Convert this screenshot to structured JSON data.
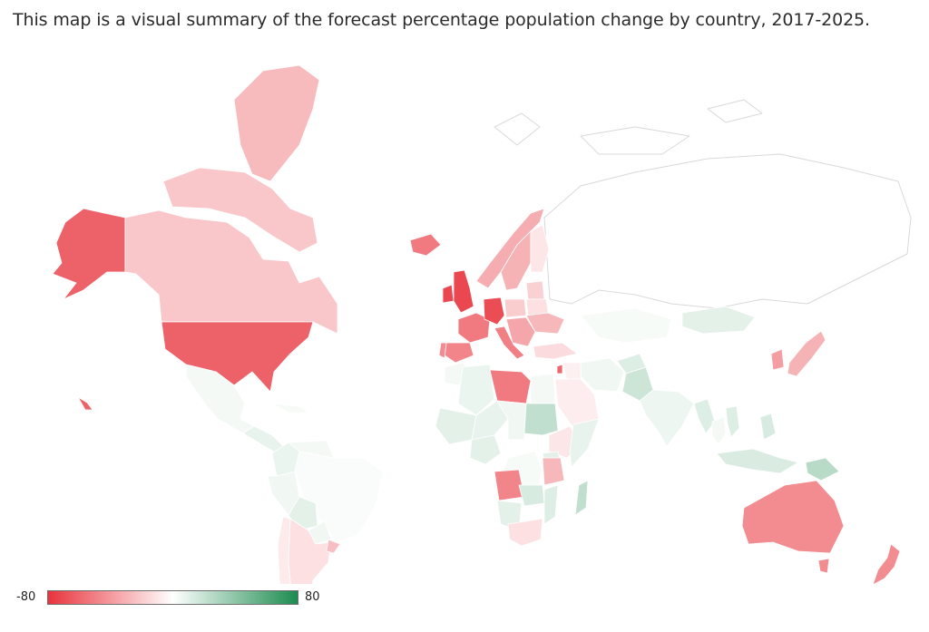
{
  "title": "This map is a visual summary of the forecast percentage population change by country, 2017-2025.",
  "legend": {
    "min_label": "-80",
    "max_label": "80",
    "min": -80,
    "max": 80,
    "color_low": "#e8333c",
    "color_mid": "#ffffff",
    "color_high": "#1c8b4f"
  },
  "colors": {
    "land_empty": "#ffffff",
    "border": "#d9d9d9"
  },
  "regions": [
    {
      "name": "Alaska (USA)",
      "value": -62
    },
    {
      "name": "Canada",
      "value": -22
    },
    {
      "name": "Greenland",
      "value": -27
    },
    {
      "name": "Canadian Arctic Islands",
      "value": -22
    },
    {
      "name": "United States",
      "value": -62
    },
    {
      "name": "Hawaii (USA)",
      "value": -62
    },
    {
      "name": "Mexico",
      "value": 4
    },
    {
      "name": "Central America",
      "value": 8
    },
    {
      "name": "Cuba",
      "value": 3
    },
    {
      "name": "Colombia",
      "value": 7
    },
    {
      "name": "Venezuela",
      "value": 4
    },
    {
      "name": "Brazil",
      "value": 2
    },
    {
      "name": "Peru",
      "value": 5
    },
    {
      "name": "Bolivia",
      "value": 10
    },
    {
      "name": "Paraguay",
      "value": 5
    },
    {
      "name": "Chile",
      "value": -8
    },
    {
      "name": "Argentina",
      "value": -12
    },
    {
      "name": "Uruguay",
      "value": -25
    },
    {
      "name": "Iceland",
      "value": -52
    },
    {
      "name": "United Kingdom",
      "value": -72
    },
    {
      "name": "Ireland",
      "value": -72
    },
    {
      "name": "Norway",
      "value": -32
    },
    {
      "name": "Sweden",
      "value": -30
    },
    {
      "name": "Finland",
      "value": -10
    },
    {
      "name": "France",
      "value": -52
    },
    {
      "name": "Spain",
      "value": -48
    },
    {
      "name": "Portugal",
      "value": -45
    },
    {
      "name": "Germany",
      "value": -70
    },
    {
      "name": "Italy",
      "value": -50
    },
    {
      "name": "Poland",
      "value": -20
    },
    {
      "name": "Ukraine",
      "value": -28
    },
    {
      "name": "Belarus",
      "value": -12
    },
    {
      "name": "Baltic states",
      "value": -18
    },
    {
      "name": "Balkans",
      "value": -35
    },
    {
      "name": "Turkey",
      "value": -14
    },
    {
      "name": "Russia",
      "value": 0
    },
    {
      "name": "Kazakhstan",
      "value": 3
    },
    {
      "name": "Mongolia",
      "value": 10
    },
    {
      "name": "China",
      "value": 0
    },
    {
      "name": "Japan",
      "value": -30
    },
    {
      "name": "South Korea",
      "value": -38
    },
    {
      "name": "India",
      "value": 6
    },
    {
      "name": "Pakistan",
      "value": 18
    },
    {
      "name": "Afghanistan",
      "value": 12
    },
    {
      "name": "Iran",
      "value": 5
    },
    {
      "name": "Saudi Arabia",
      "value": -7
    },
    {
      "name": "Iraq",
      "value": -6
    },
    {
      "name": "Israel",
      "value": -60
    },
    {
      "name": "Myanmar",
      "value": 12
    },
    {
      "name": "Thailand",
      "value": 4
    },
    {
      "name": "Vietnam",
      "value": 12
    },
    {
      "name": "Philippines",
      "value": 14
    },
    {
      "name": "Indonesia",
      "value": 13
    },
    {
      "name": "Papua New Guinea",
      "value": 25
    },
    {
      "name": "Australia",
      "value": -45
    },
    {
      "name": "Tasmania",
      "value": -45
    },
    {
      "name": "New Zealand",
      "value": -45
    },
    {
      "name": "Morocco",
      "value": 4
    },
    {
      "name": "Algeria",
      "value": 7
    },
    {
      "name": "Libya",
      "value": -52
    },
    {
      "name": "Egypt",
      "value": 4
    },
    {
      "name": "Mali",
      "value": 10
    },
    {
      "name": "Niger",
      "value": 8
    },
    {
      "name": "Chad",
      "value": 5
    },
    {
      "name": "Sudan",
      "value": 22
    },
    {
      "name": "Ethiopia",
      "value": -10
    },
    {
      "name": "Somalia",
      "value": 8
    },
    {
      "name": "Nigeria",
      "value": 10
    },
    {
      "name": "DR Congo",
      "value": 3
    },
    {
      "name": "Tanzania",
      "value": -28
    },
    {
      "name": "Kenya",
      "value": 10
    },
    {
      "name": "Angola",
      "value": -48
    },
    {
      "name": "Zambia",
      "value": 14
    },
    {
      "name": "Namibia",
      "value": 10
    },
    {
      "name": "South Africa",
      "value": -12
    },
    {
      "name": "Mozambique",
      "value": 12
    },
    {
      "name": "Madagascar",
      "value": 22
    }
  ]
}
